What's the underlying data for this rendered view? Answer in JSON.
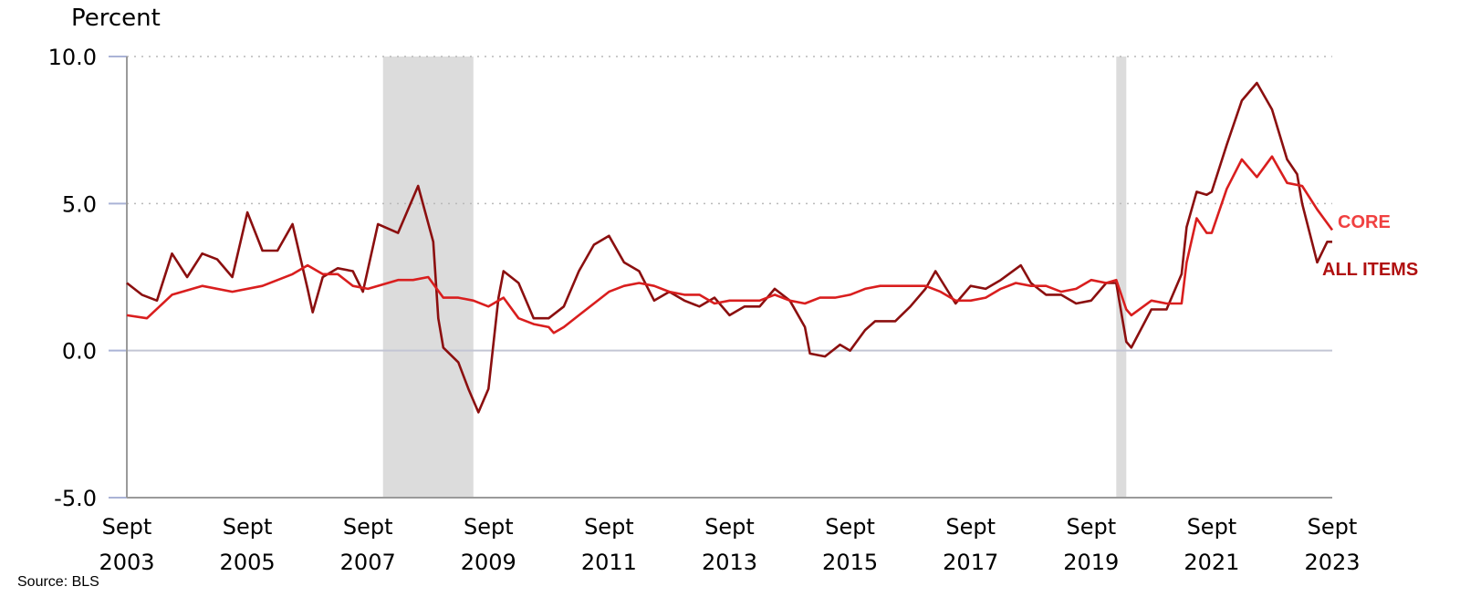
{
  "source": "Source: BLS",
  "chart_data": {
    "type": "line",
    "ylabel": "Percent",
    "ylim": [
      -5,
      10
    ],
    "yticks": [
      -5,
      0,
      5,
      10
    ],
    "ytick_labels": [
      "-5.0",
      "0.0",
      "5.0",
      "10.0"
    ],
    "xlim": [
      "2003-09",
      "2023-09"
    ],
    "xticks": [
      {
        "date": "2003-09",
        "line1": "Sept",
        "line2": "2003"
      },
      {
        "date": "2005-09",
        "line1": "Sept",
        "line2": "2005"
      },
      {
        "date": "2007-09",
        "line1": "Sept",
        "line2": "2007"
      },
      {
        "date": "2009-09",
        "line1": "Sept",
        "line2": "2009"
      },
      {
        "date": "2011-09",
        "line1": "Sept",
        "line2": "2011"
      },
      {
        "date": "2013-09",
        "line1": "Sept",
        "line2": "2013"
      },
      {
        "date": "2015-09",
        "line1": "Sept",
        "line2": "2015"
      },
      {
        "date": "2017-09",
        "line1": "Sept",
        "line2": "2017"
      },
      {
        "date": "2019-09",
        "line1": "Sept",
        "line2": "2019"
      },
      {
        "date": "2021-09",
        "line1": "Sept",
        "line2": "2021"
      },
      {
        "date": "2023-09",
        "line1": "Sept",
        "line2": "2023"
      }
    ],
    "grid": "dotted horizontal at 5.0 and 10.0",
    "recessions": [
      {
        "start": "2007-12",
        "end": "2009-06"
      },
      {
        "start": "2020-02",
        "end": "2020-04"
      }
    ],
    "series": [
      {
        "name": "ALL ITEMS",
        "color": "#8b0f0f",
        "label_color": "#b01010",
        "points": [
          [
            "2003-09",
            2.3
          ],
          [
            "2003-12",
            1.9
          ],
          [
            "2004-03",
            1.7
          ],
          [
            "2004-06",
            3.3
          ],
          [
            "2004-09",
            2.5
          ],
          [
            "2004-12",
            3.3
          ],
          [
            "2005-03",
            3.1
          ],
          [
            "2005-06",
            2.5
          ],
          [
            "2005-09",
            4.7
          ],
          [
            "2005-12",
            3.4
          ],
          [
            "2006-03",
            3.4
          ],
          [
            "2006-06",
            4.3
          ],
          [
            "2006-09",
            2.1
          ],
          [
            "2006-10",
            1.3
          ],
          [
            "2006-12",
            2.5
          ],
          [
            "2007-03",
            2.8
          ],
          [
            "2007-06",
            2.7
          ],
          [
            "2007-08",
            2.0
          ],
          [
            "2007-11",
            4.3
          ],
          [
            "2008-03",
            4.0
          ],
          [
            "2008-07",
            5.6
          ],
          [
            "2008-10",
            3.7
          ],
          [
            "2008-11",
            1.1
          ],
          [
            "2008-12",
            0.1
          ],
          [
            "2009-03",
            -0.4
          ],
          [
            "2009-05",
            -1.3
          ],
          [
            "2009-07",
            -2.1
          ],
          [
            "2009-09",
            -1.3
          ],
          [
            "2009-11",
            1.8
          ],
          [
            "2009-12",
            2.7
          ],
          [
            "2010-03",
            2.3
          ],
          [
            "2010-06",
            1.1
          ],
          [
            "2010-09",
            1.1
          ],
          [
            "2010-12",
            1.5
          ],
          [
            "2011-03",
            2.7
          ],
          [
            "2011-06",
            3.6
          ],
          [
            "2011-09",
            3.9
          ],
          [
            "2011-12",
            3.0
          ],
          [
            "2012-03",
            2.7
          ],
          [
            "2012-06",
            1.7
          ],
          [
            "2012-09",
            2.0
          ],
          [
            "2012-12",
            1.7
          ],
          [
            "2013-03",
            1.5
          ],
          [
            "2013-06",
            1.8
          ],
          [
            "2013-09",
            1.2
          ],
          [
            "2013-12",
            1.5
          ],
          [
            "2014-03",
            1.5
          ],
          [
            "2014-06",
            2.1
          ],
          [
            "2014-09",
            1.7
          ],
          [
            "2014-12",
            0.8
          ],
          [
            "2015-01",
            -0.1
          ],
          [
            "2015-04",
            -0.2
          ],
          [
            "2015-07",
            0.2
          ],
          [
            "2015-09",
            0.0
          ],
          [
            "2015-12",
            0.7
          ],
          [
            "2016-02",
            1.0
          ],
          [
            "2016-06",
            1.0
          ],
          [
            "2016-09",
            1.5
          ],
          [
            "2016-12",
            2.1
          ],
          [
            "2017-02",
            2.7
          ],
          [
            "2017-06",
            1.6
          ],
          [
            "2017-09",
            2.2
          ],
          [
            "2017-12",
            2.1
          ],
          [
            "2018-03",
            2.4
          ],
          [
            "2018-07",
            2.9
          ],
          [
            "2018-09",
            2.3
          ],
          [
            "2018-12",
            1.9
          ],
          [
            "2019-03",
            1.9
          ],
          [
            "2019-06",
            1.6
          ],
          [
            "2019-09",
            1.7
          ],
          [
            "2019-12",
            2.3
          ],
          [
            "2020-02",
            2.3
          ],
          [
            "2020-04",
            0.3
          ],
          [
            "2020-05",
            0.1
          ],
          [
            "2020-09",
            1.4
          ],
          [
            "2020-12",
            1.4
          ],
          [
            "2021-03",
            2.6
          ],
          [
            "2021-04",
            4.2
          ],
          [
            "2021-06",
            5.4
          ],
          [
            "2021-08",
            5.3
          ],
          [
            "2021-09",
            5.4
          ],
          [
            "2021-12",
            7.0
          ],
          [
            "2022-03",
            8.5
          ],
          [
            "2022-06",
            9.1
          ],
          [
            "2022-09",
            8.2
          ],
          [
            "2022-12",
            6.5
          ],
          [
            "2023-02",
            6.0
          ],
          [
            "2023-03",
            5.0
          ],
          [
            "2023-06",
            3.0
          ],
          [
            "2023-08",
            3.7
          ],
          [
            "2023-09",
            3.7
          ]
        ]
      },
      {
        "name": "CORE",
        "color": "#d91e1e",
        "label_color": "#f04040",
        "points": [
          [
            "2003-09",
            1.2
          ],
          [
            "2004-01",
            1.1
          ],
          [
            "2004-06",
            1.9
          ],
          [
            "2004-12",
            2.2
          ],
          [
            "2005-06",
            2.0
          ],
          [
            "2005-12",
            2.2
          ],
          [
            "2006-06",
            2.6
          ],
          [
            "2006-09",
            2.9
          ],
          [
            "2006-12",
            2.6
          ],
          [
            "2007-03",
            2.6
          ],
          [
            "2007-06",
            2.2
          ],
          [
            "2007-09",
            2.1
          ],
          [
            "2008-03",
            2.4
          ],
          [
            "2008-06",
            2.4
          ],
          [
            "2008-09",
            2.5
          ],
          [
            "2008-12",
            1.8
          ],
          [
            "2009-03",
            1.8
          ],
          [
            "2009-06",
            1.7
          ],
          [
            "2009-09",
            1.5
          ],
          [
            "2009-12",
            1.8
          ],
          [
            "2010-03",
            1.1
          ],
          [
            "2010-06",
            0.9
          ],
          [
            "2010-09",
            0.8
          ],
          [
            "2010-10",
            0.6
          ],
          [
            "2010-12",
            0.8
          ],
          [
            "2011-03",
            1.2
          ],
          [
            "2011-06",
            1.6
          ],
          [
            "2011-09",
            2.0
          ],
          [
            "2011-12",
            2.2
          ],
          [
            "2012-03",
            2.3
          ],
          [
            "2012-06",
            2.2
          ],
          [
            "2012-09",
            2.0
          ],
          [
            "2012-12",
            1.9
          ],
          [
            "2013-03",
            1.9
          ],
          [
            "2013-06",
            1.6
          ],
          [
            "2013-09",
            1.7
          ],
          [
            "2013-12",
            1.7
          ],
          [
            "2014-03",
            1.7
          ],
          [
            "2014-06",
            1.9
          ],
          [
            "2014-09",
            1.7
          ],
          [
            "2014-12",
            1.6
          ],
          [
            "2015-03",
            1.8
          ],
          [
            "2015-06",
            1.8
          ],
          [
            "2015-09",
            1.9
          ],
          [
            "2015-12",
            2.1
          ],
          [
            "2016-03",
            2.2
          ],
          [
            "2016-06",
            2.2
          ],
          [
            "2016-09",
            2.2
          ],
          [
            "2016-12",
            2.2
          ],
          [
            "2017-03",
            2.0
          ],
          [
            "2017-06",
            1.7
          ],
          [
            "2017-09",
            1.7
          ],
          [
            "2017-12",
            1.8
          ],
          [
            "2018-03",
            2.1
          ],
          [
            "2018-06",
            2.3
          ],
          [
            "2018-09",
            2.2
          ],
          [
            "2018-12",
            2.2
          ],
          [
            "2019-03",
            2.0
          ],
          [
            "2019-06",
            2.1
          ],
          [
            "2019-09",
            2.4
          ],
          [
            "2019-12",
            2.3
          ],
          [
            "2020-02",
            2.4
          ],
          [
            "2020-04",
            1.4
          ],
          [
            "2020-05",
            1.2
          ],
          [
            "2020-09",
            1.7
          ],
          [
            "2020-12",
            1.6
          ],
          [
            "2021-03",
            1.6
          ],
          [
            "2021-04",
            3.0
          ],
          [
            "2021-06",
            4.5
          ],
          [
            "2021-08",
            4.0
          ],
          [
            "2021-09",
            4.0
          ],
          [
            "2021-12",
            5.5
          ],
          [
            "2022-03",
            6.5
          ],
          [
            "2022-06",
            5.9
          ],
          [
            "2022-09",
            6.6
          ],
          [
            "2022-12",
            5.7
          ],
          [
            "2023-03",
            5.6
          ],
          [
            "2023-06",
            4.8
          ],
          [
            "2023-09",
            4.1
          ]
        ]
      }
    ]
  }
}
